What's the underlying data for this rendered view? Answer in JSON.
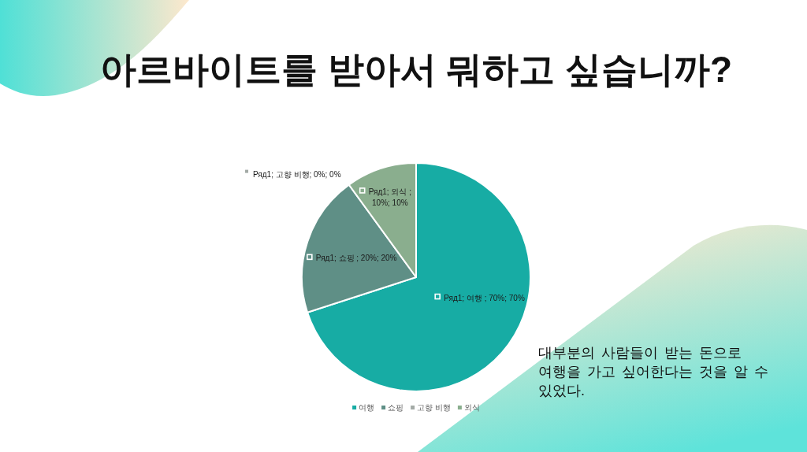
{
  "chart_data": {
    "type": "pie",
    "title": "아르바이트를 받아서 뭐하고 싶습니까?",
    "categories": [
      "여행",
      "쇼핑",
      "고향 비행",
      "외식"
    ],
    "values": [
      70,
      20,
      0,
      10
    ],
    "colors": [
      "#17aca4",
      "#5f8f86",
      "#a3aaa6",
      "#8aae8e"
    ],
    "value_labels": [
      "Ряд1; 여행 ; 70%; 70%",
      "Ряд1; 쇼핑 ; 20%; 20%",
      "Ряд1; 고향 비행; 0%; 0%",
      "Ряд1; 외식 ; 10%; 10%"
    ],
    "legend": "bottom",
    "annotations": [
      "대부분의 사람들이 받는 돈으로 여행을 가고 싶어한다는 것을 알 수 있었다."
    ]
  }
}
